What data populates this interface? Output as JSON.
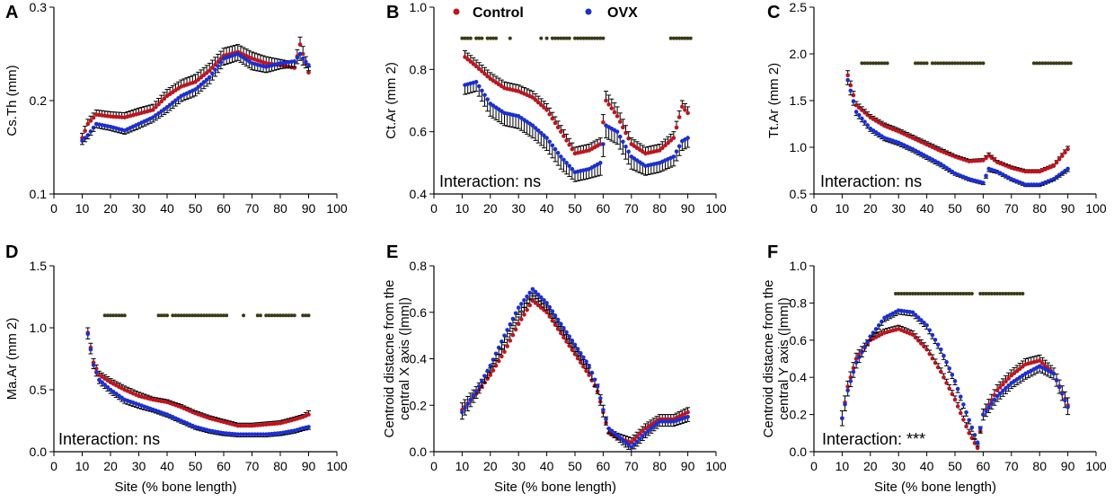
{
  "colors": {
    "control": "#c0141e",
    "ovx": "#1c2fd1",
    "error_bar": "#000000",
    "sig_dot": "#3a3a16"
  },
  "legend": [
    {
      "label": "Control",
      "series": "control"
    },
    {
      "label": "OVX",
      "series": "ovx"
    }
  ],
  "x_axis_label": "Site (% bone length)",
  "chart_data": [
    {
      "id": "A",
      "type": "scatter",
      "panel_label": "A",
      "ylabel": "Cs.Th (mm)",
      "xlabel": "",
      "xlim": [
        0,
        100
      ],
      "ylim": [
        0.1,
        0.3
      ],
      "xticks": [
        "0",
        "10",
        "20",
        "30",
        "40",
        "50",
        "60",
        "70",
        "80",
        "90",
        "100"
      ],
      "yticks": [
        "0.1",
        "0.2",
        "0.3"
      ],
      "ytick_values": [
        0.1,
        0.2,
        0.3
      ],
      "annotation": "",
      "series": [
        {
          "name": "Control",
          "x": [
            10,
            12,
            15,
            20,
            25,
            30,
            35,
            40,
            45,
            50,
            55,
            60,
            65,
            70,
            75,
            80,
            85,
            87,
            88,
            90
          ],
          "y": [
            0.16,
            0.175,
            0.185,
            0.183,
            0.182,
            0.186,
            0.19,
            0.205,
            0.215,
            0.22,
            0.232,
            0.248,
            0.252,
            0.245,
            0.24,
            0.238,
            0.235,
            0.26,
            0.25,
            0.23
          ],
          "err": [
            0.005,
            0.005,
            0.005,
            0.005,
            0.005,
            0.006,
            0.006,
            0.007,
            0.007,
            0.008,
            0.008,
            0.008,
            0.008,
            0.007,
            0.007,
            0.006,
            0.006,
            0.008,
            0.008,
            0.006
          ]
        },
        {
          "name": "OVX",
          "x": [
            10,
            12,
            15,
            20,
            25,
            30,
            35,
            40,
            45,
            50,
            55,
            60,
            65,
            70,
            75,
            80,
            85,
            87,
            88,
            90
          ],
          "y": [
            0.157,
            0.163,
            0.175,
            0.172,
            0.168,
            0.175,
            0.182,
            0.193,
            0.205,
            0.212,
            0.225,
            0.245,
            0.25,
            0.24,
            0.236,
            0.24,
            0.242,
            0.25,
            0.245,
            0.238
          ],
          "err": [
            0.004,
            0.004,
            0.004,
            0.004,
            0.004,
            0.005,
            0.005,
            0.006,
            0.006,
            0.007,
            0.007,
            0.007,
            0.007,
            0.007,
            0.006,
            0.006,
            0.006,
            0.007,
            0.007,
            0.006
          ]
        }
      ],
      "significance": {
        "y": null,
        "ranges": []
      }
    },
    {
      "id": "B",
      "type": "scatter",
      "panel_label": "B",
      "ylabel": "Ct.Ar (mm 2)",
      "xlabel": "",
      "xlim": [
        0,
        100
      ],
      "ylim": [
        0.4,
        1.0
      ],
      "xticks": [
        "0",
        "10",
        "20",
        "30",
        "40",
        "50",
        "60",
        "70",
        "80",
        "90",
        "100"
      ],
      "yticks": [
        "0.4",
        "0.6",
        "0.8",
        "1.0"
      ],
      "ytick_values": [
        0.4,
        0.6,
        0.8,
        1.0
      ],
      "annotation": "Interaction: ns",
      "series": [
        {
          "name": "Control",
          "x": [
            11,
            15,
            20,
            25,
            30,
            35,
            40,
            45,
            50,
            55,
            59,
            61,
            65,
            70,
            75,
            80,
            85,
            88,
            90
          ],
          "y": [
            0.84,
            0.81,
            0.77,
            0.74,
            0.73,
            0.71,
            0.67,
            0.6,
            0.53,
            0.54,
            0.56,
            0.7,
            0.65,
            0.56,
            0.53,
            0.54,
            0.58,
            0.68,
            0.66
          ],
          "err": [
            0.02,
            0.02,
            0.02,
            0.02,
            0.02,
            0.02,
            0.02,
            0.02,
            0.02,
            0.02,
            0.02,
            0.03,
            0.03,
            0.02,
            0.02,
            0.02,
            0.02,
            0.02,
            0.02
          ]
        },
        {
          "name": "OVX",
          "x": [
            11,
            15,
            20,
            25,
            30,
            35,
            40,
            45,
            50,
            55,
            59,
            61,
            65,
            70,
            75,
            80,
            85,
            88,
            90
          ],
          "y": [
            0.75,
            0.76,
            0.69,
            0.66,
            0.65,
            0.62,
            0.58,
            0.52,
            0.47,
            0.48,
            0.5,
            0.62,
            0.6,
            0.52,
            0.49,
            0.5,
            0.52,
            0.57,
            0.58
          ],
          "err": [
            0.03,
            0.03,
            0.04,
            0.04,
            0.04,
            0.04,
            0.04,
            0.04,
            0.03,
            0.03,
            0.04,
            0.04,
            0.04,
            0.04,
            0.03,
            0.03,
            0.03,
            0.03,
            0.03
          ]
        }
      ],
      "significance": {
        "y": 0.9,
        "ranges": [
          [
            10,
            13
          ],
          [
            15,
            17
          ],
          [
            19,
            22
          ],
          [
            27,
            27
          ],
          [
            38,
            38
          ],
          [
            40,
            40
          ],
          [
            42,
            48
          ],
          [
            50,
            60
          ],
          [
            84,
            91
          ]
        ]
      }
    },
    {
      "id": "C",
      "type": "scatter",
      "panel_label": "C",
      "ylabel": "Tt.Ar (mm 2)",
      "xlabel": "",
      "xlim": [
        0,
        100
      ],
      "ylim": [
        0.5,
        2.5
      ],
      "xticks": [
        "0",
        "10",
        "20",
        "30",
        "40",
        "50",
        "60",
        "70",
        "80",
        "90",
        "100"
      ],
      "yticks": [
        "0.5",
        "1.0",
        "1.5",
        "2.0",
        "2.5"
      ],
      "ytick_values": [
        0.5,
        1.0,
        1.5,
        2.0,
        2.5
      ],
      "annotation": "Interaction: ns",
      "series": [
        {
          "name": "Control",
          "x": [
            12,
            15,
            20,
            25,
            30,
            35,
            40,
            45,
            50,
            55,
            60,
            62,
            65,
            70,
            75,
            80,
            85,
            90
          ],
          "y": [
            1.77,
            1.45,
            1.32,
            1.23,
            1.17,
            1.1,
            1.03,
            0.96,
            0.9,
            0.85,
            0.86,
            0.91,
            0.84,
            0.78,
            0.74,
            0.74,
            0.8,
            0.98
          ],
          "err": [
            0.05,
            0.04,
            0.03,
            0.03,
            0.03,
            0.03,
            0.03,
            0.03,
            0.02,
            0.02,
            0.02,
            0.03,
            0.02,
            0.02,
            0.02,
            0.02,
            0.02,
            0.03
          ]
        },
        {
          "name": "OVX",
          "x": [
            12,
            15,
            20,
            25,
            30,
            35,
            40,
            45,
            50,
            55,
            60,
            62,
            65,
            70,
            75,
            80,
            85,
            90
          ],
          "y": [
            1.72,
            1.38,
            1.2,
            1.1,
            1.05,
            0.98,
            0.9,
            0.82,
            0.72,
            0.66,
            0.62,
            0.77,
            0.74,
            0.66,
            0.6,
            0.6,
            0.66,
            0.77
          ],
          "err": [
            0.05,
            0.04,
            0.03,
            0.03,
            0.03,
            0.03,
            0.03,
            0.03,
            0.02,
            0.02,
            0.02,
            0.03,
            0.02,
            0.02,
            0.02,
            0.02,
            0.02,
            0.03
          ]
        }
      ],
      "significance": {
        "y": 1.9,
        "ranges": [
          [
            17,
            26
          ],
          [
            36,
            40
          ],
          [
            42,
            60
          ],
          [
            78,
            91
          ]
        ]
      }
    },
    {
      "id": "D",
      "type": "scatter",
      "panel_label": "D",
      "ylabel": "Ma.Ar (mm 2)",
      "xlabel": "",
      "xlim": [
        0,
        100
      ],
      "ylim": [
        0.0,
        1.5
      ],
      "xticks": [
        "0",
        "10",
        "20",
        "30",
        "40",
        "50",
        "60",
        "70",
        "80",
        "90",
        "100"
      ],
      "yticks": [
        "0.0",
        "0.5",
        "1.0",
        "1.5"
      ],
      "ytick_values": [
        0.0,
        0.5,
        1.0,
        1.5
      ],
      "annotation": "Interaction: ns",
      "series": [
        {
          "name": "Control",
          "x": [
            12,
            14,
            16,
            20,
            25,
            30,
            35,
            40,
            45,
            50,
            55,
            60,
            65,
            70,
            75,
            80,
            85,
            88,
            90
          ],
          "y": [
            0.96,
            0.72,
            0.62,
            0.56,
            0.5,
            0.45,
            0.42,
            0.4,
            0.36,
            0.31,
            0.27,
            0.24,
            0.21,
            0.21,
            0.22,
            0.23,
            0.26,
            0.28,
            0.3
          ],
          "err": [
            0.04,
            0.03,
            0.03,
            0.03,
            0.03,
            0.03,
            0.02,
            0.02,
            0.02,
            0.02,
            0.02,
            0.02,
            0.02,
            0.02,
            0.02,
            0.02,
            0.02,
            0.02,
            0.03
          ]
        },
        {
          "name": "OVX",
          "x": [
            12,
            14,
            16,
            20,
            25,
            30,
            35,
            40,
            45,
            50,
            55,
            60,
            65,
            70,
            75,
            80,
            85,
            88,
            90
          ],
          "y": [
            0.95,
            0.7,
            0.58,
            0.5,
            0.42,
            0.38,
            0.34,
            0.3,
            0.25,
            0.2,
            0.17,
            0.15,
            0.14,
            0.14,
            0.14,
            0.15,
            0.17,
            0.19,
            0.2
          ],
          "err": [
            0.04,
            0.03,
            0.03,
            0.03,
            0.03,
            0.03,
            0.02,
            0.02,
            0.02,
            0.02,
            0.02,
            0.02,
            0.02,
            0.02,
            0.02,
            0.02,
            0.02,
            0.02,
            0.02
          ]
        }
      ],
      "significance": {
        "y": 1.1,
        "ranges": [
          [
            18,
            25
          ],
          [
            37,
            40
          ],
          [
            42,
            61
          ],
          [
            67,
            67
          ],
          [
            72,
            73
          ],
          [
            75,
            85
          ],
          [
            88,
            90
          ]
        ]
      }
    },
    {
      "id": "E",
      "type": "scatter",
      "panel_label": "E",
      "ylabel": "Centroid distacne from the central X axis (|mm|)",
      "xlabel": "Site (% bone length)",
      "xlim": [
        0,
        100
      ],
      "ylim": [
        0.0,
        0.8
      ],
      "xticks": [
        "0",
        "10",
        "20",
        "30",
        "40",
        "50",
        "60",
        "70",
        "80",
        "90",
        "100"
      ],
      "yticks": [
        "0.0",
        "0.2",
        "0.4",
        "0.6",
        "0.8"
      ],
      "ytick_values": [
        0.0,
        0.2,
        0.4,
        0.6,
        0.8
      ],
      "annotation": "",
      "series": [
        {
          "name": "Control",
          "x": [
            10,
            15,
            20,
            25,
            30,
            35,
            40,
            45,
            50,
            55,
            58,
            60,
            62,
            65,
            70,
            75,
            80,
            85,
            90
          ],
          "y": [
            0.18,
            0.25,
            0.33,
            0.43,
            0.55,
            0.65,
            0.6,
            0.51,
            0.42,
            0.33,
            0.26,
            0.17,
            0.08,
            0.06,
            0.04,
            0.1,
            0.14,
            0.14,
            0.17
          ],
          "err": [
            0.03,
            0.03,
            0.03,
            0.03,
            0.03,
            0.03,
            0.03,
            0.03,
            0.03,
            0.03,
            0.03,
            0.03,
            0.02,
            0.02,
            0.02,
            0.02,
            0.02,
            0.02,
            0.02
          ]
        },
        {
          "name": "OVX",
          "x": [
            10,
            15,
            20,
            25,
            30,
            35,
            40,
            45,
            50,
            55,
            58,
            60,
            62,
            65,
            70,
            75,
            80,
            85,
            90
          ],
          "y": [
            0.17,
            0.26,
            0.37,
            0.5,
            0.62,
            0.7,
            0.64,
            0.55,
            0.46,
            0.37,
            0.28,
            0.18,
            0.1,
            0.07,
            0.02,
            0.08,
            0.13,
            0.13,
            0.15
          ],
          "err": [
            0.03,
            0.03,
            0.03,
            0.03,
            0.03,
            0.03,
            0.03,
            0.03,
            0.03,
            0.03,
            0.03,
            0.03,
            0.02,
            0.02,
            0.02,
            0.02,
            0.02,
            0.02,
            0.02
          ]
        }
      ],
      "significance": {
        "y": null,
        "ranges": []
      }
    },
    {
      "id": "F",
      "type": "scatter",
      "panel_label": "F",
      "ylabel": "Centroid distacne from the central Y axis (|mm|)",
      "xlabel": "Site (% bone length)",
      "xlim": [
        0,
        100
      ],
      "ylim": [
        0.0,
        1.0
      ],
      "xticks": [
        "0",
        "10",
        "20",
        "30",
        "40",
        "50",
        "60",
        "70",
        "80",
        "90",
        "100"
      ],
      "yticks": [
        "0.0",
        "0.2",
        "0.4",
        "0.6",
        "0.8",
        "1.0"
      ],
      "ytick_values": [
        0.0,
        0.2,
        0.4,
        0.6,
        0.8,
        1.0
      ],
      "annotation": "Interaction: ***",
      "series": [
        {
          "name": "Control",
          "x": [
            10,
            12,
            15,
            20,
            25,
            30,
            35,
            40,
            45,
            50,
            55,
            58,
            60,
            65,
            70,
            75,
            80,
            85,
            90
          ],
          "y": [
            0.18,
            0.35,
            0.5,
            0.6,
            0.64,
            0.66,
            0.63,
            0.55,
            0.43,
            0.28,
            0.1,
            0.02,
            0.2,
            0.33,
            0.41,
            0.47,
            0.49,
            0.42,
            0.25
          ],
          "err": [
            0.04,
            0.03,
            0.03,
            0.02,
            0.02,
            0.02,
            0.02,
            0.02,
            0.02,
            0.02,
            0.02,
            0.02,
            0.03,
            0.03,
            0.03,
            0.03,
            0.03,
            0.03,
            0.04
          ]
        },
        {
          "name": "OVX",
          "x": [
            10,
            12,
            15,
            20,
            25,
            30,
            35,
            40,
            45,
            50,
            55,
            58,
            60,
            65,
            70,
            75,
            80,
            85,
            90
          ],
          "y": [
            0.18,
            0.33,
            0.48,
            0.62,
            0.72,
            0.76,
            0.75,
            0.68,
            0.55,
            0.38,
            0.17,
            0.05,
            0.2,
            0.3,
            0.37,
            0.42,
            0.46,
            0.42,
            0.24
          ],
          "err": [
            0.04,
            0.03,
            0.03,
            0.02,
            0.02,
            0.02,
            0.02,
            0.02,
            0.02,
            0.02,
            0.02,
            0.02,
            0.03,
            0.03,
            0.03,
            0.03,
            0.03,
            0.03,
            0.04
          ]
        }
      ],
      "significance": {
        "y": 0.85,
        "ranges": [
          [
            29,
            56
          ],
          [
            59,
            74
          ]
        ]
      }
    }
  ]
}
